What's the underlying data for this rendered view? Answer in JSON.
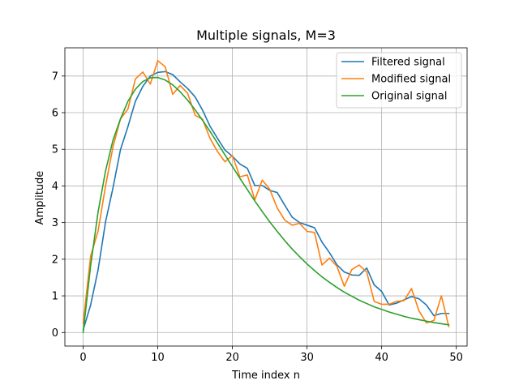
{
  "chart_data": {
    "type": "line",
    "title": "Multiple signals, M=3",
    "xlabel": "Time index n",
    "ylabel": "Amplitude",
    "xlim": [
      -2.45,
      51.45
    ],
    "ylim": [
      -0.37,
      7.77
    ],
    "x_ticks": [
      0,
      10,
      20,
      30,
      40,
      50
    ],
    "y_ticks": [
      0,
      1,
      2,
      3,
      4,
      5,
      6,
      7
    ],
    "grid": true,
    "legend_placement": "upper right",
    "x": [
      0,
      1,
      2,
      3,
      4,
      5,
      6,
      7,
      8,
      9,
      10,
      11,
      12,
      13,
      14,
      15,
      16,
      17,
      18,
      19,
      20,
      21,
      22,
      23,
      24,
      25,
      26,
      27,
      28,
      29,
      30,
      31,
      32,
      33,
      34,
      35,
      36,
      37,
      38,
      39,
      40,
      41,
      42,
      43,
      44,
      45,
      46,
      47,
      48,
      49
    ],
    "series": [
      {
        "name": "Filtered signal",
        "color": "#1f77b4",
        "values": [
          0.07,
          0.75,
          1.71,
          3.02,
          3.95,
          4.99,
          5.62,
          6.31,
          6.72,
          7.0,
          7.1,
          7.12,
          7.04,
          6.84,
          6.66,
          6.43,
          6.07,
          5.63,
          5.3,
          4.98,
          4.81,
          4.6,
          4.48,
          4.01,
          4.01,
          3.88,
          3.82,
          3.48,
          3.15,
          3.0,
          2.93,
          2.86,
          2.47,
          2.18,
          1.85,
          1.65,
          1.57,
          1.56,
          1.76,
          1.3,
          1.12,
          0.75,
          0.8,
          0.89,
          0.98,
          0.92,
          0.75,
          0.46,
          0.52,
          0.52
        ]
      },
      {
        "name": "Modified signal",
        "color": "#ff7f0e",
        "values": [
          0.25,
          2.08,
          2.77,
          4.0,
          5.07,
          5.83,
          6.1,
          6.92,
          7.11,
          6.78,
          7.42,
          7.25,
          6.5,
          6.74,
          6.53,
          5.93,
          5.82,
          5.3,
          4.94,
          4.66,
          4.83,
          4.25,
          4.3,
          3.62,
          4.16,
          3.91,
          3.4,
          3.07,
          2.93,
          2.98,
          2.76,
          2.73,
          1.84,
          2.03,
          1.81,
          1.26,
          1.72,
          1.84,
          1.65,
          0.85,
          0.77,
          0.77,
          0.85,
          0.87,
          1.2,
          0.59,
          0.26,
          0.33,
          1.0,
          0.16
        ]
      },
      {
        "name": "Original signal",
        "color": "#2ca02c",
        "values": [
          0.0,
          1.82,
          3.29,
          4.41,
          5.25,
          5.83,
          6.31,
          6.64,
          6.85,
          6.95,
          6.96,
          6.89,
          6.76,
          6.57,
          6.34,
          6.08,
          5.79,
          5.49,
          5.17,
          4.85,
          4.53,
          4.21,
          3.9,
          3.59,
          3.3,
          3.02,
          2.76,
          2.51,
          2.28,
          2.07,
          1.87,
          1.69,
          1.52,
          1.37,
          1.23,
          1.1,
          0.99,
          0.88,
          0.79,
          0.7,
          0.63,
          0.56,
          0.5,
          0.44,
          0.39,
          0.35,
          0.31,
          0.27,
          0.24,
          0.21
        ]
      }
    ]
  }
}
